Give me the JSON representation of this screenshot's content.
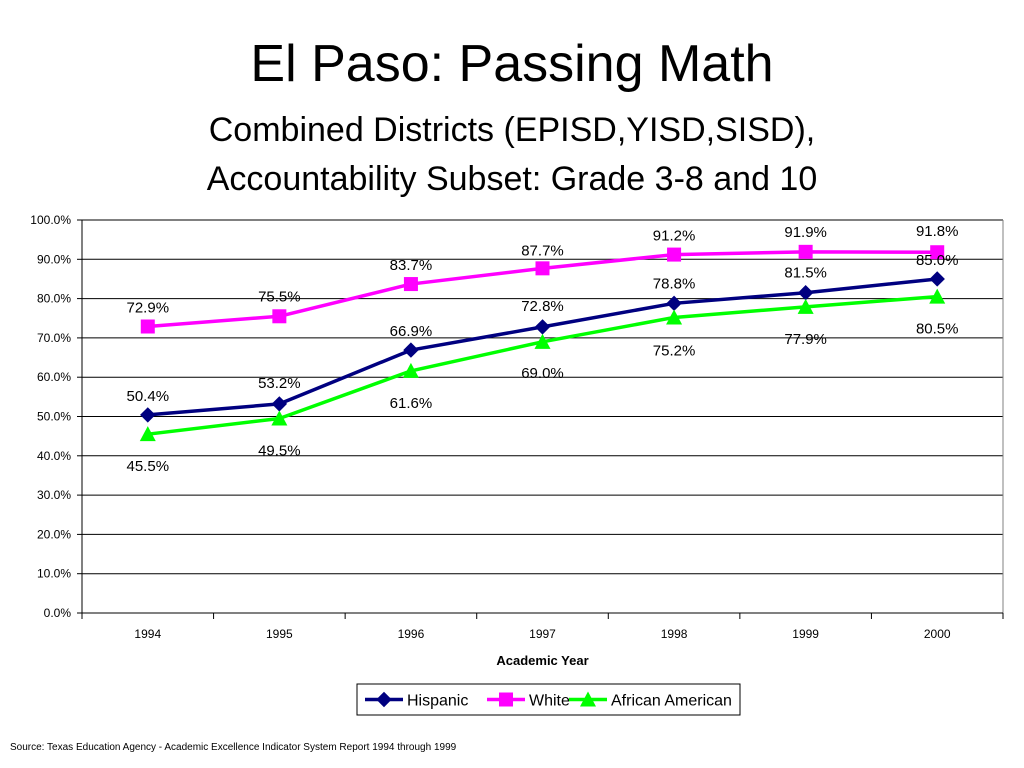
{
  "page": {
    "title": "El Paso: Passing Math",
    "subtitle_line1": "Combined Districts (EPISD,YISD,SISD),",
    "subtitle_line2": "Accountability Subset: Grade 3-8 and 10",
    "source": "Source: Texas Education Agency - Academic Excellence Indicator System Report 1994 through 1999"
  },
  "chart_data": {
    "type": "line",
    "xlabel": "Academic Year",
    "ylabel": "",
    "categories": [
      "1994",
      "1995",
      "1996",
      "1997",
      "1998",
      "1999",
      "2000"
    ],
    "ylim": [
      0,
      100
    ],
    "yticks": [
      "0.0%",
      "10.0%",
      "20.0%",
      "30.0%",
      "40.0%",
      "50.0%",
      "60.0%",
      "70.0%",
      "80.0%",
      "90.0%",
      "100.0%"
    ],
    "grid": true,
    "legend_position": "bottom",
    "series": [
      {
        "name": "Hispanic",
        "color": "#000080",
        "marker": "diamond",
        "values": [
          50.4,
          53.2,
          66.9,
          72.8,
          78.8,
          81.5,
          85.0
        ],
        "labels": [
          "50.4%",
          "53.2%",
          "66.9%",
          "72.8%",
          "78.8%",
          "81.5%",
          "85.0%"
        ]
      },
      {
        "name": "White",
        "color": "#ff00ff",
        "marker": "square",
        "values": [
          72.9,
          75.5,
          83.7,
          87.7,
          91.2,
          91.9,
          91.8
        ],
        "labels": [
          "72.9%",
          "75.5%",
          "83.7%",
          "87.7%",
          "91.2%",
          "91.9%",
          "91.8%"
        ]
      },
      {
        "name": "African American",
        "color": "#00ff00",
        "marker": "triangle",
        "values": [
          45.5,
          49.5,
          61.6,
          69.0,
          75.2,
          77.9,
          80.5
        ],
        "labels": [
          "45.5%",
          "49.5%",
          "61.6%",
          "69.0%",
          "75.2%",
          "77.9%",
          "80.5%"
        ]
      }
    ]
  }
}
